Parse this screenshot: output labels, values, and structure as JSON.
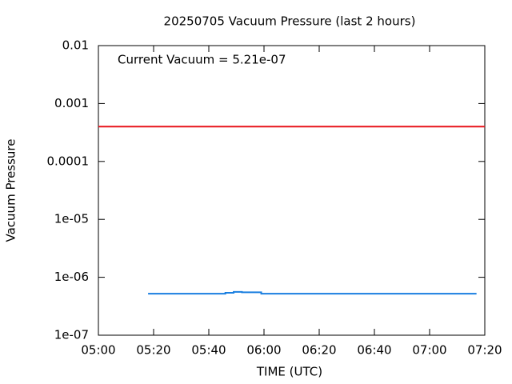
{
  "chart_data": {
    "type": "line",
    "title": "20250705 Vacuum Pressure (last 2 hours)",
    "xlabel": "TIME (UTC)",
    "ylabel": "Vacuum Pressure",
    "annotation": "Current Vacuum = 5.21e-07",
    "yscale": "log",
    "drawstyle": "steps-post",
    "xlim": [
      "05:00",
      "07:20"
    ],
    "xticks": [
      "05:00",
      "05:20",
      "05:40",
      "06:00",
      "06:20",
      "06:40",
      "07:00",
      "07:20"
    ],
    "ylim": [
      1e-07,
      0.01
    ],
    "yticks": [
      {
        "value": 1e-07,
        "label": "1e-07"
      },
      {
        "value": 1e-06,
        "label": "1e-06"
      },
      {
        "value": 1e-05,
        "label": "1e-05"
      },
      0.0001,
      0.001,
      0.01
    ],
    "hlines": [
      {
        "value": 0.0004,
        "color": "#e8141b"
      }
    ],
    "series": [
      {
        "color": "#1a7fe0",
        "x": [
          "05:18",
          "05:46",
          "05:49",
          "05:52",
          "05:59",
          "07:17"
        ],
        "values": [
          5.2e-07,
          5.4e-07,
          5.6e-07,
          5.5e-07,
          5.2e-07,
          5.2e-07
        ]
      }
    ]
  }
}
